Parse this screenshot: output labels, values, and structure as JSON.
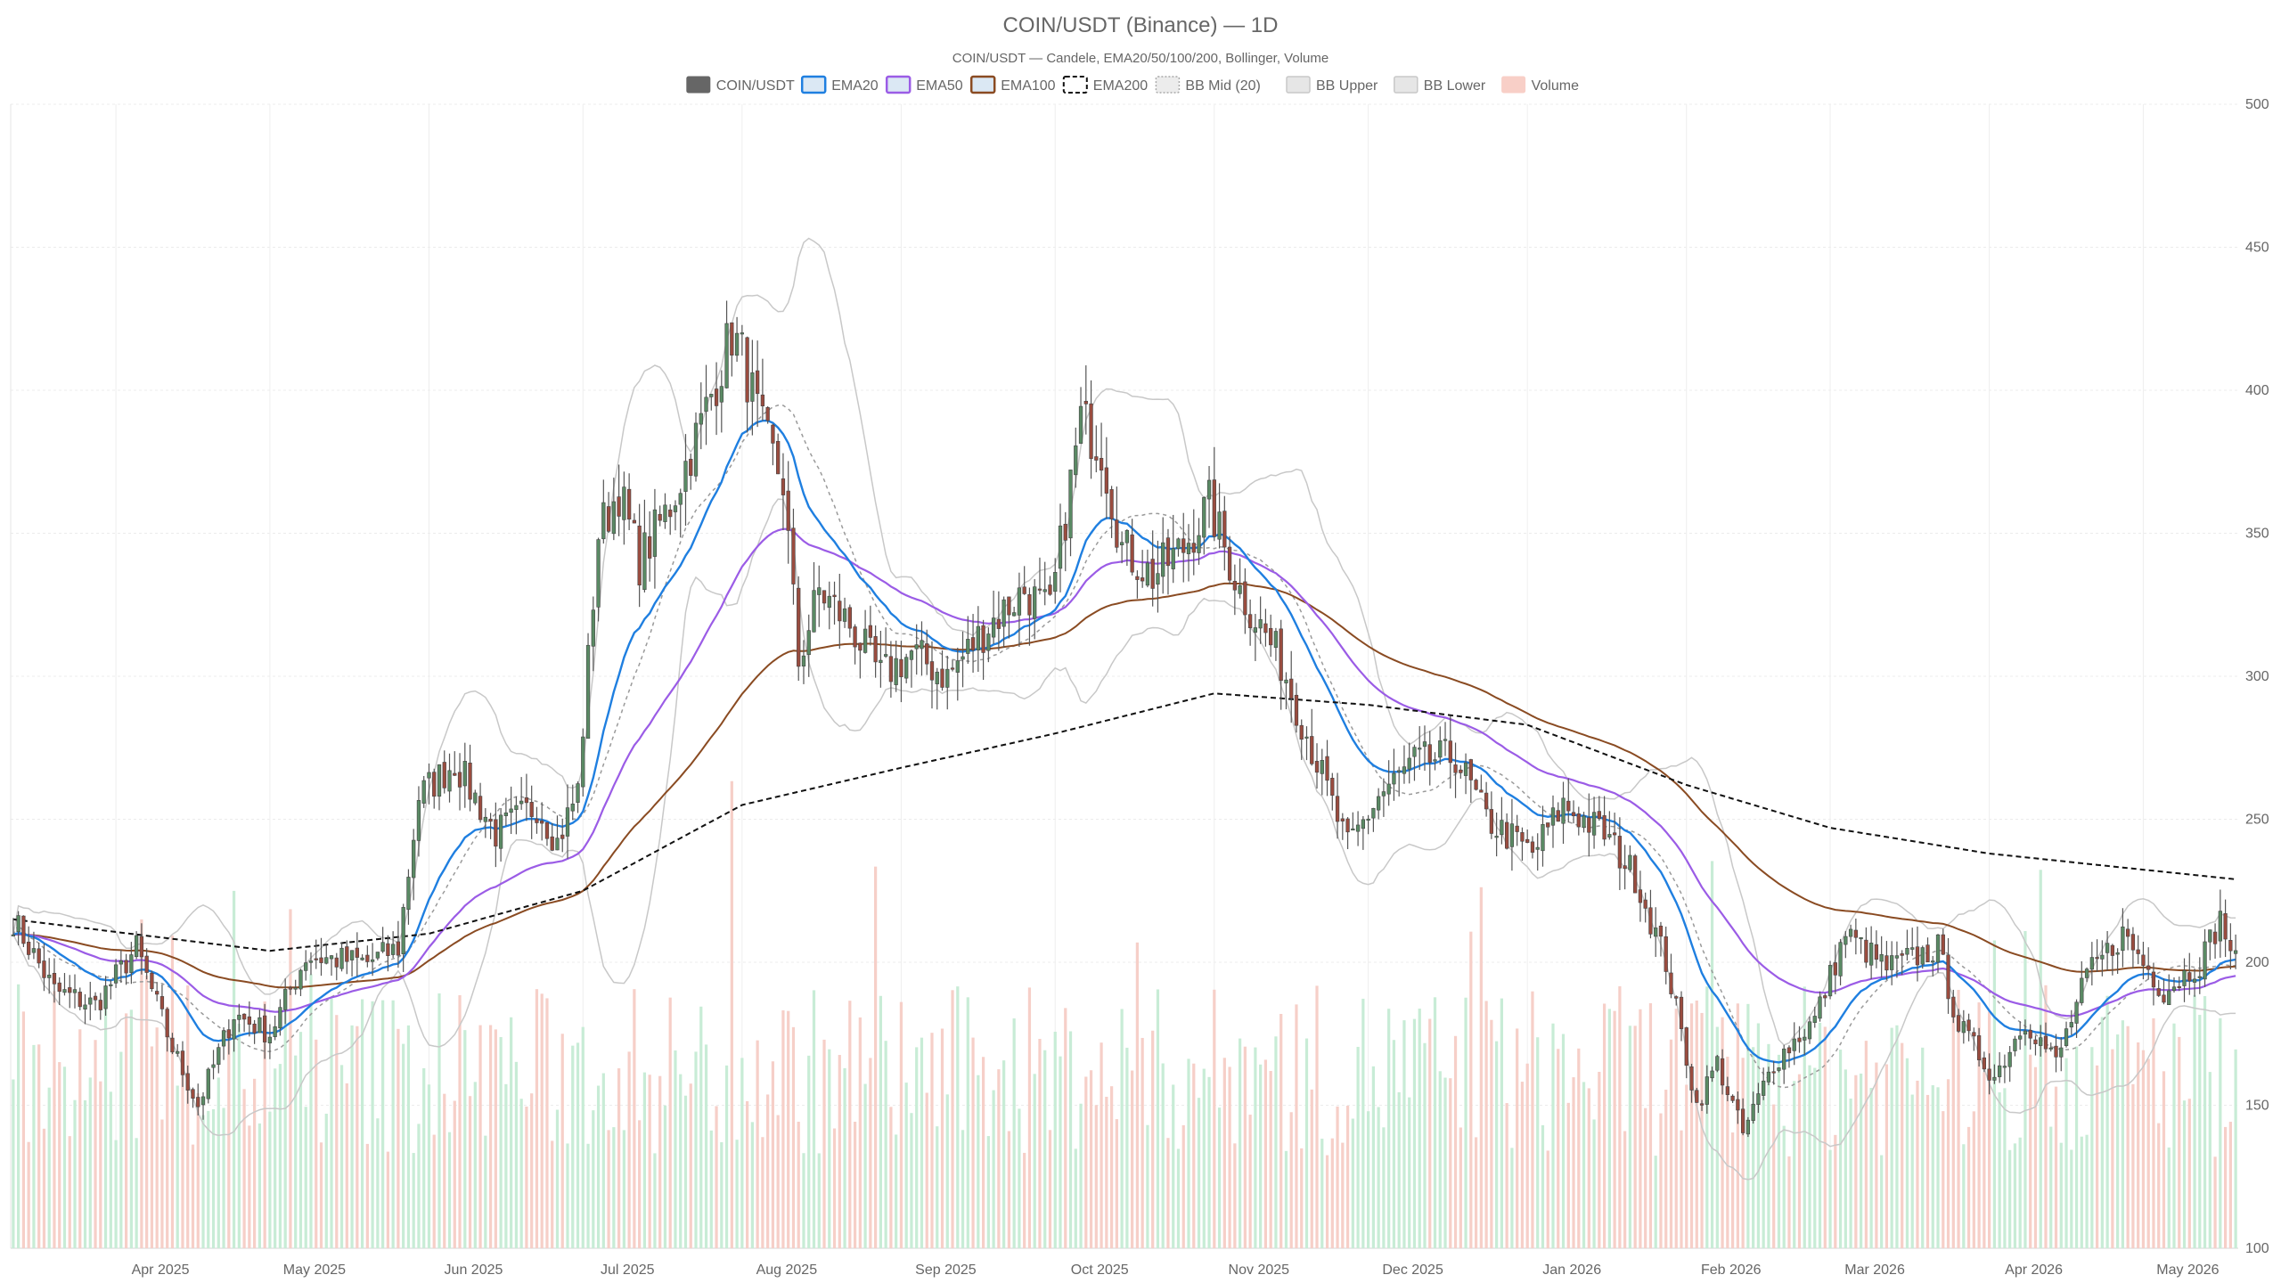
{
  "chart_data": {
    "type": "candlestick",
    "title": "COIN/USDT (Binance) — 1D",
    "subtitle": "COIN/USDT — Candele, EMA20/50/100/200, Bollinger, Volume",
    "legend": {
      "placement": "top-center",
      "items": [
        {
          "label": "COIN/USDT",
          "color": "#666666",
          "style": "solid-fill"
        },
        {
          "label": "EMA20",
          "color": "#1f7fe0",
          "style": "line"
        },
        {
          "label": "EMA50",
          "color": "#9b5ce6",
          "style": "line"
        },
        {
          "label": "EMA100",
          "color": "#8a4b22",
          "style": "line"
        },
        {
          "label": "EMA200",
          "color": "#111111",
          "style": "dashed"
        },
        {
          "label": "BB Mid (20)",
          "color": "#aaaaaa",
          "style": "dotted"
        },
        {
          "label": "BB Upper",
          "color": "#c8c8c8",
          "style": "line"
        },
        {
          "label": "BB Lower",
          "color": "#c8c8c8",
          "style": "line"
        },
        {
          "label": "Volume",
          "color": "#f4b8ae",
          "style": "bar"
        }
      ]
    },
    "y_axis": {
      "position": "right",
      "range": [
        100,
        500
      ],
      "ticks": [
        100,
        150,
        200,
        250,
        300,
        350,
        400,
        450,
        500
      ]
    },
    "x_axis": {
      "start": "2025-03-12",
      "end": "2026-05-19",
      "month_ticks": [
        {
          "label": "Apr 2025",
          "date": "2025-04-01"
        },
        {
          "label": "May 2025",
          "date": "2025-05-01"
        },
        {
          "label": "Jun 2025",
          "date": "2025-06-01"
        },
        {
          "label": "Jul 2025",
          "date": "2025-07-01"
        },
        {
          "label": "Aug 2025",
          "date": "2025-08-01"
        },
        {
          "label": "Sep 2025",
          "date": "2025-09-01"
        },
        {
          "label": "Oct 2025",
          "date": "2025-10-01"
        },
        {
          "label": "Nov 2025",
          "date": "2025-11-01"
        },
        {
          "label": "Dec 2025",
          "date": "2025-12-01"
        },
        {
          "label": "Jan 2026",
          "date": "2026-01-01"
        },
        {
          "label": "Feb 2026",
          "date": "2026-02-01"
        },
        {
          "label": "Mar 2026",
          "date": "2026-03-01"
        },
        {
          "label": "Apr 2026",
          "date": "2026-04-01"
        },
        {
          "label": "May 2026",
          "date": "2026-05-01"
        }
      ]
    },
    "grid": true,
    "colors": {
      "up": "#5a8a64",
      "down": "#9a4c3f",
      "volume_up": "#c8ecd6",
      "volume_down": "#f6cfc8"
    },
    "price_keypoints": [
      {
        "date": "2025-03-12",
        "close": 215
      },
      {
        "date": "2025-03-20",
        "close": 190
      },
      {
        "date": "2025-03-28",
        "close": 185
      },
      {
        "date": "2025-04-05",
        "close": 205
      },
      {
        "date": "2025-04-12",
        "close": 170
      },
      {
        "date": "2025-04-17",
        "close": 150
      },
      {
        "date": "2025-04-24",
        "close": 182
      },
      {
        "date": "2025-05-01",
        "close": 175
      },
      {
        "date": "2025-05-08",
        "close": 202
      },
      {
        "date": "2025-05-20",
        "close": 200
      },
      {
        "date": "2025-05-26",
        "close": 205
      },
      {
        "date": "2025-05-30",
        "close": 258
      },
      {
        "date": "2025-06-06",
        "close": 270
      },
      {
        "date": "2025-06-14",
        "close": 245
      },
      {
        "date": "2025-06-22",
        "close": 255
      },
      {
        "date": "2025-06-26",
        "close": 242
      },
      {
        "date": "2025-06-30",
        "close": 260
      },
      {
        "date": "2025-07-04",
        "close": 350
      },
      {
        "date": "2025-07-08",
        "close": 365
      },
      {
        "date": "2025-07-12",
        "close": 340
      },
      {
        "date": "2025-07-18",
        "close": 360
      },
      {
        "date": "2025-07-24",
        "close": 388
      },
      {
        "date": "2025-07-30",
        "close": 420
      },
      {
        "date": "2025-08-01",
        "close": 412
      },
      {
        "date": "2025-08-05",
        "close": 385
      },
      {
        "date": "2025-08-09",
        "close": 368
      },
      {
        "date": "2025-08-12",
        "close": 305
      },
      {
        "date": "2025-08-16",
        "close": 330
      },
      {
        "date": "2025-08-22",
        "close": 318
      },
      {
        "date": "2025-08-28",
        "close": 300
      },
      {
        "date": "2025-09-03",
        "close": 308
      },
      {
        "date": "2025-09-10",
        "close": 300
      },
      {
        "date": "2025-09-18",
        "close": 318
      },
      {
        "date": "2025-09-25",
        "close": 330
      },
      {
        "date": "2025-09-30",
        "close": 322
      },
      {
        "date": "2025-10-06",
        "close": 390
      },
      {
        "date": "2025-10-10",
        "close": 380
      },
      {
        "date": "2025-10-14",
        "close": 345
      },
      {
        "date": "2025-10-20",
        "close": 335
      },
      {
        "date": "2025-10-26",
        "close": 345
      },
      {
        "date": "2025-10-31",
        "close": 360
      },
      {
        "date": "2025-11-06",
        "close": 330
      },
      {
        "date": "2025-11-14",
        "close": 305
      },
      {
        "date": "2025-11-19",
        "close": 280
      },
      {
        "date": "2025-11-27",
        "close": 240
      },
      {
        "date": "2025-12-03",
        "close": 258
      },
      {
        "date": "2025-12-10",
        "close": 270
      },
      {
        "date": "2025-12-18",
        "close": 272
      },
      {
        "date": "2025-12-24",
        "close": 250
      },
      {
        "date": "2026-01-02",
        "close": 238
      },
      {
        "date": "2026-01-08",
        "close": 255
      },
      {
        "date": "2026-01-16",
        "close": 245
      },
      {
        "date": "2026-01-22",
        "close": 230
      },
      {
        "date": "2026-01-28",
        "close": 200
      },
      {
        "date": "2026-02-03",
        "close": 150
      },
      {
        "date": "2026-02-07",
        "close": 165
      },
      {
        "date": "2026-02-12",
        "close": 140
      },
      {
        "date": "2026-02-18",
        "close": 165
      },
      {
        "date": "2026-02-26",
        "close": 180
      },
      {
        "date": "2026-03-04",
        "close": 210
      },
      {
        "date": "2026-03-12",
        "close": 198
      },
      {
        "date": "2026-03-22",
        "close": 205
      },
      {
        "date": "2026-03-26",
        "close": 178
      },
      {
        "date": "2026-04-02",
        "close": 160
      },
      {
        "date": "2026-04-08",
        "close": 180
      },
      {
        "date": "2026-04-14",
        "close": 165
      },
      {
        "date": "2026-04-20",
        "close": 195
      },
      {
        "date": "2026-04-27",
        "close": 210
      },
      {
        "date": "2026-05-05",
        "close": 190
      },
      {
        "date": "2026-05-12",
        "close": 200
      },
      {
        "date": "2026-05-16",
        "close": 215
      },
      {
        "date": "2026-05-19",
        "close": 200
      }
    ],
    "ema200_keypoints": [
      {
        "date": "2025-03-12",
        "value": 215
      },
      {
        "date": "2025-05-01",
        "value": 204
      },
      {
        "date": "2025-06-01",
        "value": 210
      },
      {
        "date": "2025-07-01",
        "value": 225
      },
      {
        "date": "2025-08-01",
        "value": 255
      },
      {
        "date": "2025-09-01",
        "value": 268
      },
      {
        "date": "2025-10-01",
        "value": 280
      },
      {
        "date": "2025-11-01",
        "value": 294
      },
      {
        "date": "2025-12-01",
        "value": 290
      },
      {
        "date": "2026-01-01",
        "value": 283
      },
      {
        "date": "2026-02-01",
        "value": 262
      },
      {
        "date": "2026-03-01",
        "value": 247
      },
      {
        "date": "2026-04-01",
        "value": 238
      },
      {
        "date": "2026-05-19",
        "value": 229
      }
    ]
  }
}
